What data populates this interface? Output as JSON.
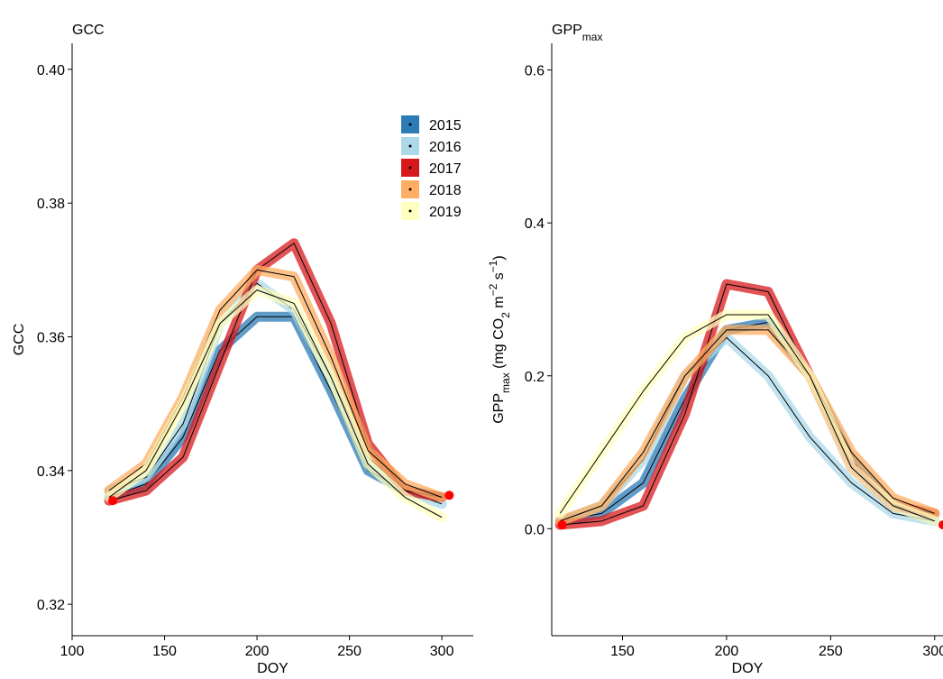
{
  "chart_data": [
    {
      "type": "line",
      "title_parts": [
        {
          "text": "GCC"
        }
      ],
      "xlabel": "DOY",
      "ylabel_parts": [
        {
          "text": "GCC"
        }
      ],
      "x": [
        120,
        140,
        160,
        180,
        200,
        220,
        240,
        260,
        280,
        300
      ],
      "xlim": [
        100,
        317
      ],
      "xticks": [
        100,
        150,
        200,
        250,
        300
      ],
      "ylim": [
        0.3153,
        0.4039
      ],
      "yticks": [
        {
          "value": 0.32,
          "label": "0.32"
        },
        {
          "value": 0.34,
          "label": "0.34"
        },
        {
          "value": 0.36,
          "label": "0.36"
        },
        {
          "value": 0.38,
          "label": "0.38"
        },
        {
          "value": 0.4,
          "label": "0.40"
        }
      ],
      "legend": true,
      "series": [
        {
          "name": "2015",
          "color": "#2c7bb6",
          "values": [
            0.336,
            0.338,
            0.345,
            0.358,
            0.363,
            0.363,
            0.352,
            0.34,
            0.337,
            0.336
          ]
        },
        {
          "name": "2016",
          "color": "#abd9e9",
          "values": [
            0.337,
            0.339,
            0.347,
            0.362,
            0.368,
            0.364,
            0.354,
            0.342,
            0.337,
            0.335
          ]
        },
        {
          "name": "2017",
          "color": "#d7191c",
          "values": [
            0.3355,
            0.337,
            0.342,
            0.356,
            0.37,
            0.374,
            0.362,
            0.344,
            0.337,
            0.336
          ]
        },
        {
          "name": "2018",
          "color": "#fdae61",
          "values": [
            0.337,
            0.341,
            0.351,
            0.364,
            0.37,
            0.369,
            0.357,
            0.343,
            0.338,
            0.336
          ]
        },
        {
          "name": "2019",
          "color": "#ffffbf",
          "values": [
            0.336,
            0.34,
            0.35,
            0.362,
            0.367,
            0.365,
            0.354,
            0.341,
            0.336,
            0.333
          ]
        }
      ],
      "markers": {
        "color": "#ff0000",
        "x": [
          122,
          304
        ],
        "y": [
          0.3355,
          0.3363
        ]
      }
    },
    {
      "type": "line",
      "title_parts": [
        {
          "text": "GPP"
        },
        {
          "text": "max",
          "shift": "sub"
        }
      ],
      "xlabel": "DOY",
      "ylabel_parts": [
        {
          "text": "GPP"
        },
        {
          "text": "max",
          "shift": "sub"
        },
        {
          "text": " (mg CO"
        },
        {
          "text": "2",
          "shift": "sub"
        },
        {
          "text": " m"
        },
        {
          "text": "−2",
          "shift": "super"
        },
        {
          "text": " s"
        },
        {
          "text": "−1",
          "shift": "super"
        },
        {
          "text": ")"
        }
      ],
      "x": [
        120,
        140,
        160,
        180,
        200,
        220,
        240,
        260,
        280,
        300
      ],
      "xlim": [
        116,
        304
      ],
      "xticks": [
        150,
        200,
        250,
        300
      ],
      "ylim": [
        -0.14,
        0.635
      ],
      "yticks": [
        {
          "value": 0,
          "label": "0.0"
        },
        0.2,
        0.4,
        0.6
      ],
      "legend": false,
      "series": [
        {
          "name": "2015",
          "color": "#2c7bb6",
          "values": [
            0.01,
            0.02,
            0.06,
            0.17,
            0.26,
            0.27,
            0.2,
            0.09,
            0.03,
            0.01
          ]
        },
        {
          "name": "2016",
          "color": "#abd9e9",
          "values": [
            0.01,
            0.03,
            0.09,
            0.2,
            0.25,
            0.2,
            0.12,
            0.06,
            0.02,
            0.01
          ]
        },
        {
          "name": "2017",
          "color": "#d7191c",
          "values": [
            0.005,
            0.01,
            0.03,
            0.15,
            0.32,
            0.31,
            0.2,
            0.08,
            0.03,
            0.02
          ]
        },
        {
          "name": "2018",
          "color": "#fdae61",
          "values": [
            0.01,
            0.03,
            0.1,
            0.2,
            0.26,
            0.26,
            0.2,
            0.1,
            0.04,
            0.02
          ]
        },
        {
          "name": "2019",
          "color": "#ffffbf",
          "values": [
            0.02,
            0.1,
            0.18,
            0.25,
            0.28,
            0.28,
            0.2,
            0.08,
            0.03,
            0.01
          ]
        }
      ],
      "markers": {
        "color": "#ff0000",
        "x": [
          121,
          304
        ],
        "y": [
          0.005,
          0.005
        ]
      }
    }
  ]
}
